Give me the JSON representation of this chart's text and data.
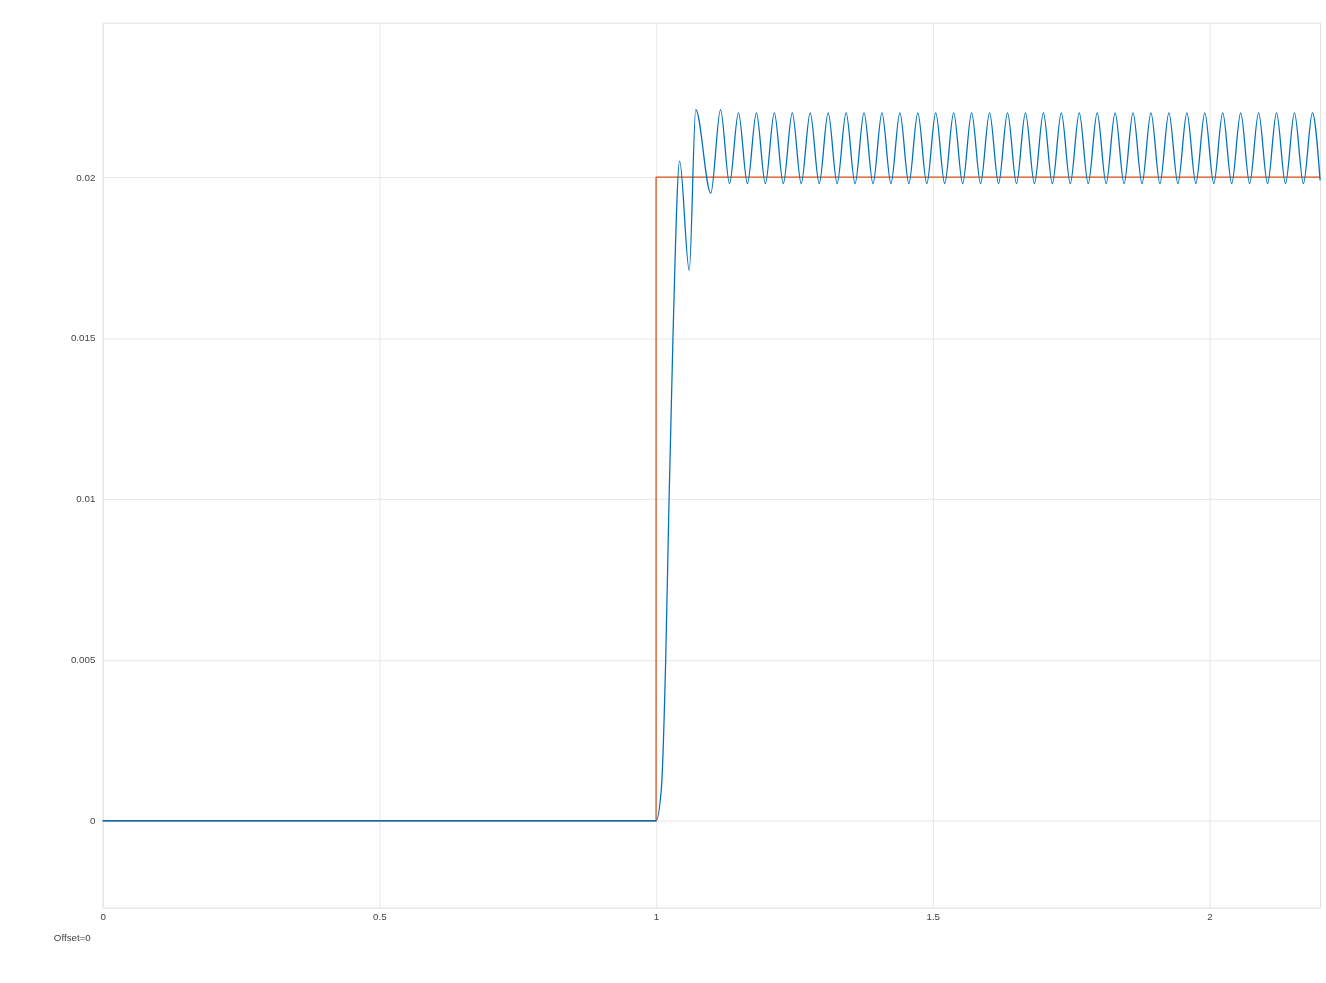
{
  "chart_data": {
    "type": "line",
    "xlim": [
      0,
      2.2
    ],
    "ylim": [
      -0.0027,
      0.0248
    ],
    "xticks": [
      0,
      0.5,
      1,
      1.5,
      2
    ],
    "yticks": [
      0,
      0.005,
      0.01,
      0.015,
      0.02
    ],
    "grid": true,
    "marker": "none",
    "line_style": "solid",
    "annotations": [
      "Offset=0"
    ],
    "series": [
      {
        "type": "step",
        "color": "#d95319",
        "x": [
          0,
          1,
          2.2
        ],
        "values": [
          0,
          0.02,
          0.02
        ]
      },
      {
        "color": "#0072bd",
        "x": [
          0,
          1.0,
          1.0096,
          1.0174,
          1.0235,
          1.0305,
          1.0426,
          1.06,
          1.0717,
          1.0989,
          1.1165,
          1.1327,
          1.1489,
          1.1651,
          1.1813,
          1.1975,
          1.2137,
          1.2299,
          1.2461,
          1.2623,
          1.2785,
          1.2948,
          1.311,
          1.3272,
          1.3434,
          1.3596,
          1.3758,
          1.392,
          1.4082,
          1.4244,
          1.4406,
          1.4568,
          1.473,
          1.4892,
          1.5054,
          1.5216,
          1.5378,
          1.554,
          1.5702,
          1.5864,
          1.6026,
          1.6189,
          1.6351,
          1.6513,
          1.6675,
          1.6837,
          1.6999,
          1.7161,
          1.7323,
          1.7485,
          1.7647,
          1.7809,
          1.7971,
          1.8133,
          1.8295,
          1.8457,
          1.8619,
          1.8781,
          1.8943,
          1.9105,
          1.9267,
          1.943,
          1.9592,
          1.9754,
          1.9916,
          2.0078,
          2.024,
          2.0402,
          2.0564,
          2.0726,
          2.0888,
          2.105,
          2.1212,
          2.1374,
          2.1536,
          2.1698,
          2.186,
          2.2
        ],
        "values": [
          0,
          0,
          0.001,
          0.005,
          0.01,
          0.015,
          0.0205,
          0.0171,
          0.0221,
          0.0195,
          0.0221,
          0.0198,
          0.022,
          0.0198,
          0.022,
          0.0198,
          0.022,
          0.0198,
          0.022,
          0.0198,
          0.022,
          0.0198,
          0.022,
          0.0198,
          0.022,
          0.0198,
          0.022,
          0.0198,
          0.022,
          0.0198,
          0.022,
          0.0198,
          0.022,
          0.0198,
          0.022,
          0.0198,
          0.022,
          0.0198,
          0.022,
          0.0198,
          0.022,
          0.0198,
          0.022,
          0.0198,
          0.022,
          0.0198,
          0.022,
          0.0198,
          0.022,
          0.0198,
          0.022,
          0.0198,
          0.022,
          0.0198,
          0.022,
          0.0198,
          0.022,
          0.0198,
          0.022,
          0.0198,
          0.022,
          0.0198,
          0.022,
          0.0198,
          0.022,
          0.0198,
          0.022,
          0.0198,
          0.022,
          0.0198,
          0.022,
          0.0198,
          0.022,
          0.0198,
          0.022,
          0.0198,
          0.022,
          0.0199
        ]
      }
    ]
  }
}
